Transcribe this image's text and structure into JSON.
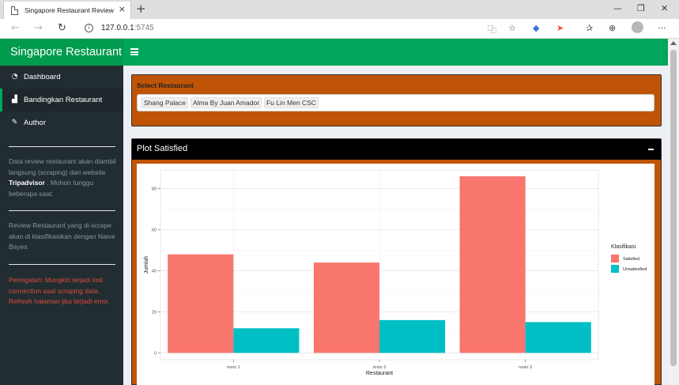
{
  "browser": {
    "tab_title": "Singapore Restaurant Review",
    "tab_close": "×",
    "new_tab": "+",
    "window_controls": [
      "—",
      "❐",
      "✕"
    ],
    "url_host": "127.0.0.1",
    "url_port": ":5745",
    "nav": {
      "back": "←",
      "forward": "→",
      "refresh": "↻",
      "info": "i"
    },
    "toolbar_icons": [
      "translate-icon",
      "star-icon",
      "extension-icon",
      "swift-icon",
      "favorites-icon",
      "collections-icon",
      "profile-icon",
      "more-icon"
    ],
    "more": "···"
  },
  "header": {
    "logo": "Singapore Restaurant"
  },
  "sidebar": {
    "items": [
      {
        "label": "Dashboard",
        "icon": "dashboard-icon",
        "glyph": "◔"
      },
      {
        "label": "Bandingkan Restaurant",
        "icon": "chart-icon",
        "glyph": "▟"
      },
      {
        "label": "Author",
        "icon": "pencil-icon",
        "glyph": "✎"
      }
    ],
    "info_before": "Data review restaurant akan diambil langsung (scraping) dari website ",
    "info_bold": "Tripadvisor",
    "info_after": " . Mohon tunggu beberapa saat.",
    "info2": "Review Restaurant yang di-scrape akan di klasifikasikan dengan Naive Bayes",
    "warning": "Peringatan: Mungkin terjadi lost connection saat scraping data. Refresh halaman jika terjadi error."
  },
  "select": {
    "label": "Select Restaurant",
    "chips": [
      "Shang Palace",
      "Alma By Juan Amador",
      "Fu Lin Men CSC"
    ]
  },
  "plot_box": {
    "title": "Plot Satisfied"
  },
  "chart_data": {
    "type": "bar",
    "categories": [
      "resto 1",
      "resto 2",
      "resto 3"
    ],
    "series": [
      {
        "name": "Satisfied",
        "values": [
          48,
          44,
          86
        ],
        "color": "#f8766d"
      },
      {
        "name": "Unsatiesfied",
        "values": [
          12,
          16,
          15
        ],
        "color": "#00bfc4"
      }
    ],
    "title": "",
    "xlabel": "Restaurant",
    "ylabel": "Jumlah",
    "ylim": [
      0,
      90
    ],
    "yticks": [
      0,
      20,
      40,
      60,
      80
    ],
    "legend_title": "Klasifikasi",
    "legend_position": "right",
    "grid": true
  }
}
